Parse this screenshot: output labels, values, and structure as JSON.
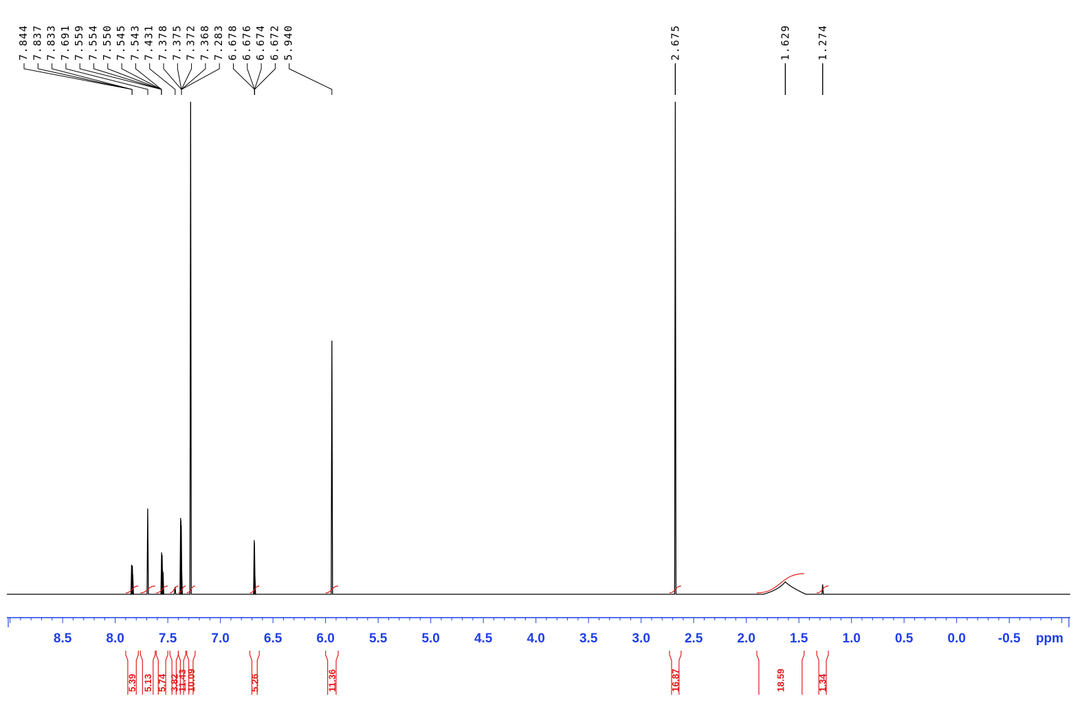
{
  "chart_data": {
    "type": "line",
    "title": "",
    "xlabel": "",
    "ylabel": "",
    "x_unit": "ppm",
    "xlim": [
      9.03,
      -1.08
    ],
    "x_reversed": true,
    "x_ticks": [
      "8.5",
      "8.0",
      "7.5",
      "7.0",
      "6.5",
      "6.0",
      "5.5",
      "5.0",
      "4.5",
      "4.0",
      "3.5",
      "3.0",
      "2.5",
      "2.0",
      "1.5",
      "1.0",
      "0.5",
      "0.0",
      "-0.5"
    ],
    "grid": false,
    "colors": {
      "spectrum": "#000000",
      "axis": "#1f3ee6",
      "integral": "#e11b1b"
    },
    "peak_groups": [
      {
        "labels": [
          "7.844",
          "7.837",
          "7.833",
          "7.691",
          "7.559",
          "7.554",
          "7.550",
          "7.545",
          "7.543",
          "7.431",
          "7.378",
          "7.375",
          "7.372",
          "7.368",
          "7.283",
          "6.678",
          "6.676",
          "6.674",
          "6.672",
          "5.940"
        ],
        "targets": [
          7.84,
          7.84,
          7.84,
          7.69,
          7.56,
          7.56,
          7.56,
          7.56,
          7.56,
          7.43,
          7.37,
          7.37,
          7.37,
          7.37,
          7.37,
          6.675,
          6.675,
          6.675,
          6.675,
          5.94
        ]
      },
      {
        "labels": [
          "2.675"
        ],
        "targets": [
          2.675
        ]
      },
      {
        "labels": [
          "1.629"
        ],
        "targets": [
          1.629
        ]
      },
      {
        "labels": [
          "1.274"
        ],
        "targets": [
          1.274
        ]
      }
    ],
    "peaks": [
      {
        "ppm": 7.844,
        "height": 0.06
      },
      {
        "ppm": 7.837,
        "height": 0.058
      },
      {
        "ppm": 7.833,
        "height": 0.04
      },
      {
        "ppm": 7.691,
        "height": 0.174
      },
      {
        "ppm": 7.559,
        "height": 0.085
      },
      {
        "ppm": 7.554,
        "height": 0.08
      },
      {
        "ppm": 7.55,
        "height": 0.05
      },
      {
        "ppm": 7.545,
        "height": 0.045
      },
      {
        "ppm": 7.431,
        "height": 0.015
      },
      {
        "ppm": 7.378,
        "height": 0.155
      },
      {
        "ppm": 7.375,
        "height": 0.15
      },
      {
        "ppm": 7.372,
        "height": 0.14
      },
      {
        "ppm": 7.368,
        "height": 0.05
      },
      {
        "ppm": 7.283,
        "height": 1.0
      },
      {
        "ppm": 6.678,
        "height": 0.11
      },
      {
        "ppm": 6.676,
        "height": 0.105
      },
      {
        "ppm": 6.674,
        "height": 0.05
      },
      {
        "ppm": 6.672,
        "height": 0.04
      },
      {
        "ppm": 5.94,
        "height": 0.515
      },
      {
        "ppm": 2.675,
        "height": 1.0
      },
      {
        "ppm": 1.629,
        "height": 0.025,
        "broad": true
      },
      {
        "ppm": 1.274,
        "height": 0.02
      }
    ],
    "integrals": [
      {
        "value": "5.39",
        "from": 7.9,
        "to": 7.78
      },
      {
        "value": "5.13",
        "from": 7.76,
        "to": 7.62
      },
      {
        "value": "5.74",
        "from": 7.61,
        "to": 7.5
      },
      {
        "value": "3.82",
        "from": 7.48,
        "to": 7.4
      },
      {
        "value": "11.43",
        "from": 7.4,
        "to": 7.33
      },
      {
        "value": "10.09",
        "from": 7.32,
        "to": 7.24
      },
      {
        "value": "5.26",
        "from": 6.72,
        "to": 6.63
      },
      {
        "value": "11.36",
        "from": 6.0,
        "to": 5.88
      },
      {
        "value": "16.87",
        "from": 2.73,
        "to": 2.62
      },
      {
        "value": "18.59",
        "from": 1.9,
        "to": 1.45
      },
      {
        "value": "1.34",
        "from": 1.33,
        "to": 1.22
      }
    ]
  }
}
